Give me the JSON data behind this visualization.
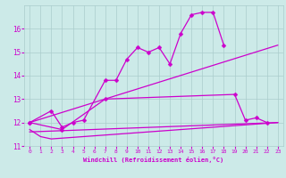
{
  "xlabel": "Windchill (Refroidissement éolien,°C)",
  "bg_color": "#cceae8",
  "grid_color": "#aacccc",
  "line_color": "#cc00cc",
  "series1_x": [
    0,
    2,
    3,
    4,
    5,
    7,
    8,
    9,
    10,
    11,
    12,
    13,
    14,
    15,
    16,
    17,
    18
  ],
  "series1_y": [
    12.0,
    12.5,
    11.8,
    12.0,
    12.1,
    13.8,
    13.8,
    14.7,
    15.2,
    15.0,
    15.2,
    14.5,
    15.8,
    16.6,
    16.7,
    16.7,
    15.3
  ],
  "series2_x": [
    0,
    3,
    7,
    19,
    20,
    21,
    22
  ],
  "series2_y": [
    12.0,
    11.7,
    13.0,
    13.2,
    12.1,
    12.2,
    12.0
  ],
  "series3_x": [
    0,
    23
  ],
  "series3_y": [
    12.0,
    15.3
  ],
  "series4_x": [
    0,
    1,
    2,
    23
  ],
  "series4_y": [
    11.7,
    11.4,
    11.3,
    12.0
  ],
  "series5_x": [
    0,
    23
  ],
  "series5_y": [
    11.6,
    12.0
  ],
  "ylim": [
    11.0,
    17.0
  ],
  "xlim": [
    -0.5,
    23.5
  ],
  "yticks": [
    11,
    12,
    13,
    14,
    15,
    16
  ],
  "xticks": [
    0,
    1,
    2,
    3,
    4,
    5,
    6,
    7,
    8,
    9,
    10,
    11,
    12,
    13,
    14,
    15,
    16,
    17,
    18,
    19,
    20,
    21,
    22,
    23
  ]
}
